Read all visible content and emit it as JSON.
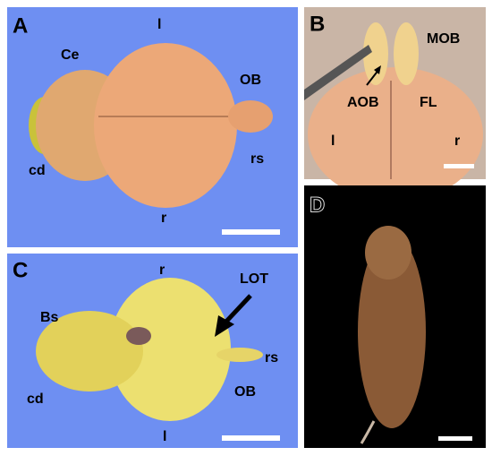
{
  "panels": [
    {
      "label": "A",
      "annotations": [
        "Ce",
        "l",
        "OB",
        "cd",
        "rs",
        "r"
      ]
    },
    {
      "label": "B",
      "annotations": [
        "MOB",
        "AOB",
        "FL",
        "l",
        "r"
      ]
    },
    {
      "label": "C",
      "annotations": [
        "r",
        "LOT",
        "Bs",
        "rs",
        "cd",
        "OB",
        "l"
      ]
    },
    {
      "label": "D",
      "annotations": []
    }
  ]
}
